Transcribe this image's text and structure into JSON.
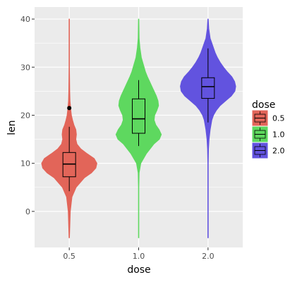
{
  "chart_data": {
    "type": "violin",
    "xlabel": "dose",
    "ylabel": "len",
    "categories": [
      "0.5",
      "1.0",
      "2.0"
    ],
    "ylim": [
      -7.5,
      42.5
    ],
    "yticks": [
      0,
      10,
      20,
      30,
      40
    ],
    "grid": true,
    "legend": {
      "title": "dose",
      "position": "right",
      "entries": [
        "0.5",
        "1.0",
        "2.0"
      ]
    },
    "colors": [
      "#e26559",
      "#5ed85f",
      "#6253df"
    ],
    "violins": [
      {
        "category": "0.5",
        "profile": [
          [
            -5.5,
            0.01
          ],
          [
            0,
            0.04
          ],
          [
            3,
            0.1
          ],
          [
            5,
            0.25
          ],
          [
            7,
            0.55
          ],
          [
            8,
            0.8
          ],
          [
            9,
            0.96
          ],
          [
            10,
            1.0
          ],
          [
            11,
            0.9
          ],
          [
            12,
            0.65
          ],
          [
            13,
            0.42
          ],
          [
            14,
            0.28
          ],
          [
            15,
            0.24
          ],
          [
            16,
            0.26
          ],
          [
            17,
            0.24
          ],
          [
            18,
            0.17
          ],
          [
            19,
            0.12
          ],
          [
            20,
            0.08
          ],
          [
            21,
            0.06
          ],
          [
            23,
            0.03
          ],
          [
            25,
            0.02
          ],
          [
            30,
            0.01
          ],
          [
            40,
            0.01
          ]
        ]
      },
      {
        "category": "1.0",
        "profile": [
          [
            -5.5,
            0.01
          ],
          [
            0,
            0.01
          ],
          [
            5,
            0.01
          ],
          [
            8,
            0.02
          ],
          [
            10,
            0.08
          ],
          [
            12,
            0.28
          ],
          [
            14,
            0.55
          ],
          [
            15,
            0.75
          ],
          [
            16,
            0.82
          ],
          [
            17,
            0.74
          ],
          [
            18,
            0.62
          ],
          [
            19,
            0.56
          ],
          [
            20,
            0.58
          ],
          [
            21,
            0.66
          ],
          [
            22,
            0.72
          ],
          [
            23,
            0.7
          ],
          [
            24,
            0.64
          ],
          [
            25,
            0.56
          ],
          [
            26,
            0.48
          ],
          [
            27,
            0.4
          ],
          [
            28,
            0.32
          ],
          [
            29,
            0.25
          ],
          [
            30,
            0.2
          ],
          [
            31,
            0.15
          ],
          [
            32,
            0.1
          ],
          [
            34,
            0.05
          ],
          [
            36,
            0.02
          ],
          [
            40,
            0.01
          ]
        ]
      },
      {
        "category": "2.0",
        "profile": [
          [
            -5.5,
            0.01
          ],
          [
            5,
            0.01
          ],
          [
            10,
            0.01
          ],
          [
            13,
            0.02
          ],
          [
            15,
            0.04
          ],
          [
            17,
            0.08
          ],
          [
            19,
            0.14
          ],
          [
            20,
            0.2
          ],
          [
            21,
            0.3
          ],
          [
            22,
            0.44
          ],
          [
            23,
            0.64
          ],
          [
            24,
            0.84
          ],
          [
            25,
            0.97
          ],
          [
            26,
            1.0
          ],
          [
            27,
            0.96
          ],
          [
            28,
            0.86
          ],
          [
            29,
            0.7
          ],
          [
            30,
            0.56
          ],
          [
            31,
            0.44
          ],
          [
            32,
            0.34
          ],
          [
            33,
            0.26
          ],
          [
            34,
            0.2
          ],
          [
            35,
            0.14
          ],
          [
            36,
            0.08
          ],
          [
            38,
            0.03
          ],
          [
            40,
            0.01
          ]
        ]
      }
    ],
    "boxplots": [
      {
        "category": "0.5",
        "min": 4.2,
        "q1": 7.2,
        "median": 9.85,
        "q3": 12.25,
        "max": 17.6,
        "outliers": [
          21.5
        ]
      },
      {
        "category": "1.0",
        "min": 13.6,
        "q1": 16.25,
        "median": 19.25,
        "q3": 23.4,
        "max": 27.3,
        "outliers": []
      },
      {
        "category": "2.0",
        "min": 18.5,
        "q1": 23.5,
        "median": 25.95,
        "q3": 27.8,
        "max": 33.9,
        "outliers": []
      }
    ]
  }
}
